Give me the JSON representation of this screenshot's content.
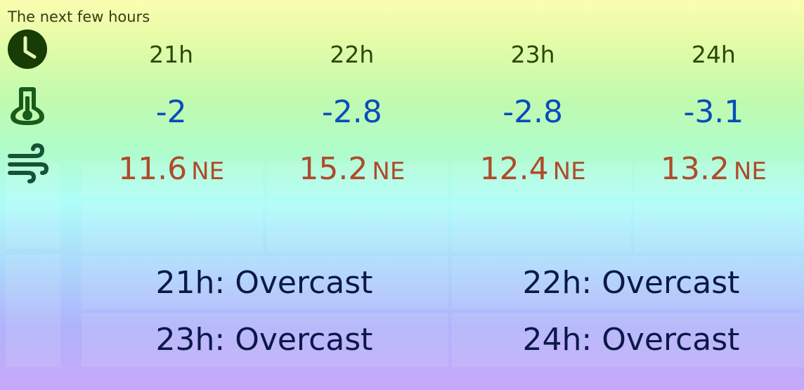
{
  "title": "The next few hours",
  "icons": {
    "time": "clock-icon",
    "temperature": "thermometer-icon",
    "wind": "wind-icon"
  },
  "colors": {
    "hour_text": "#2d4806",
    "temperature_text": "#0a4cbc",
    "wind_text": "#b04a2a",
    "condition_text": "#0c1848",
    "icon": "#1c4a10"
  },
  "hours": [
    {
      "label": "21h",
      "temp": "-2",
      "wind_speed": "11.6",
      "wind_dir": "NE"
    },
    {
      "label": "22h",
      "temp": "-2.8",
      "wind_speed": "15.2",
      "wind_dir": "NE"
    },
    {
      "label": "23h",
      "temp": "-2.8",
      "wind_speed": "12.4",
      "wind_dir": "NE"
    },
    {
      "label": "24h",
      "temp": "-3.1",
      "wind_speed": "13.2",
      "wind_dir": "NE"
    }
  ],
  "conditions": [
    "21h: Overcast",
    "22h: Overcast",
    "23h: Overcast",
    "24h: Overcast"
  ]
}
